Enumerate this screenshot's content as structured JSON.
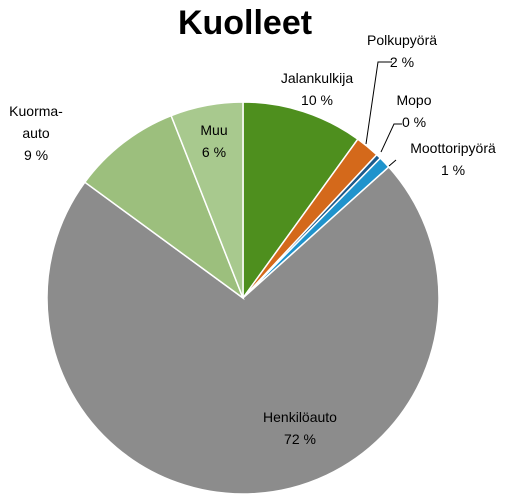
{
  "chart_data": {
    "type": "pie",
    "title": "Kuolleet",
    "categories": [
      "Jalankulkija",
      "Polkupyörä",
      "Mopo",
      "Moottoripyörä",
      "Henkilöauto",
      "Kuorma-auto",
      "Muu"
    ],
    "values": [
      10,
      2,
      0.4,
      1,
      72,
      9,
      6
    ],
    "value_labels": [
      "10 %",
      "2 %",
      "0 %",
      "1 %",
      "72 %",
      "9 %",
      "6 %"
    ],
    "colors": [
      "#4e8f1e",
      "#d4691b",
      "#1b5a8c",
      "#1f93cc",
      "#8c8c8c",
      "#9cbf7d",
      "#a8c98e"
    ]
  }
}
